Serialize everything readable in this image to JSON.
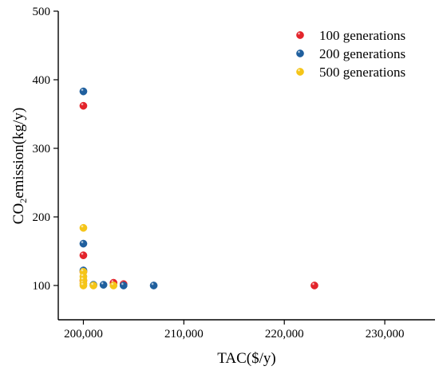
{
  "chart_data": {
    "type": "scatter",
    "title": "",
    "xlabel": "TAC($/y)",
    "ylabel": {
      "prefix": "CO",
      "subscript": "2",
      "suffix": "emission(kg/y)"
    },
    "xlim": [
      197500,
      235000
    ],
    "ylim": [
      50,
      500
    ],
    "x_ticks": [
      200000,
      210000,
      220000,
      230000
    ],
    "x_tick_labels": [
      "200,000",
      "210,000",
      "220,000",
      "230,000"
    ],
    "y_ticks": [
      100,
      200,
      300,
      400,
      500
    ],
    "y_tick_labels": [
      "100",
      "200",
      "300",
      "400",
      "500"
    ],
    "grid": false,
    "legend_position": "top-right",
    "series": [
      {
        "name": "100 generations",
        "color": "#e3242b",
        "points": [
          {
            "x": 200000,
            "y": 362
          },
          {
            "x": 200000,
            "y": 144
          },
          {
            "x": 200000,
            "y": 120
          },
          {
            "x": 200000,
            "y": 107
          },
          {
            "x": 203000,
            "y": 104
          },
          {
            "x": 204000,
            "y": 102
          },
          {
            "x": 223000,
            "y": 100
          }
        ]
      },
      {
        "name": "200 generations",
        "color": "#1f5f9e",
        "points": [
          {
            "x": 200000,
            "y": 383
          },
          {
            "x": 200000,
            "y": 161
          },
          {
            "x": 200000,
            "y": 122
          },
          {
            "x": 201000,
            "y": 101
          },
          {
            "x": 202000,
            "y": 101
          },
          {
            "x": 204000,
            "y": 100
          },
          {
            "x": 207000,
            "y": 100
          }
        ]
      },
      {
        "name": "500 generations",
        "color": "#f5c518",
        "points": [
          {
            "x": 200000,
            "y": 184
          },
          {
            "x": 200000,
            "y": 120
          },
          {
            "x": 200000,
            "y": 113
          },
          {
            "x": 200000,
            "y": 108
          },
          {
            "x": 200000,
            "y": 103
          },
          {
            "x": 200000,
            "y": 100
          },
          {
            "x": 201000,
            "y": 100
          },
          {
            "x": 203000,
            "y": 100
          }
        ]
      }
    ]
  }
}
